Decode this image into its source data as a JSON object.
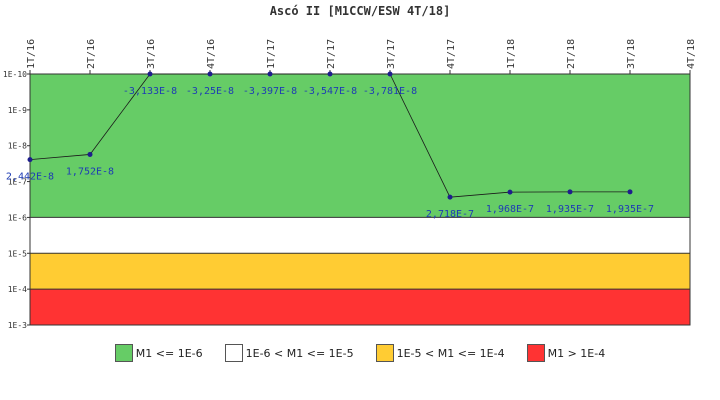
{
  "chart_data": {
    "type": "line",
    "title": "Ascó II [M1CCW/ESW 4T/18]",
    "x_categories": [
      "1T/16",
      "2T/16",
      "3T/16",
      "4T/16",
      "1T/17",
      "2T/17",
      "3T/17",
      "4T/17",
      "1T/18",
      "2T/18",
      "3T/18",
      "4T/18"
    ],
    "y_tick_labels": [
      "1E-10",
      "1E-9",
      "1E-8",
      "1E-7",
      "1E-6",
      "1E-5",
      "1E-4",
      "1E-3"
    ],
    "y_scale": "log",
    "y_axis_inverted": true,
    "ylim": [
      1e-10,
      0.001
    ],
    "series": [
      {
        "values": [
          2.442e-08,
          1.752e-08,
          -3.133e-08,
          -3.25e-08,
          -3.397e-08,
          -3.547e-08,
          -3.781e-08,
          2.718e-07,
          1.968e-07,
          1.935e-07,
          1.935e-07,
          null
        ],
        "data_labels": [
          "2,442E-8",
          "1,752E-8",
          "-3,133E-8",
          "-3,25E-8",
          "-3,397E-8",
          "-3,547E-8",
          "-3,781E-8",
          "2,718E-7",
          "1,968E-7",
          "1,935E-7",
          "1,935E-7",
          ""
        ],
        "color": "#1a1a1a",
        "marker_color": "#1e1e8c"
      }
    ],
    "bands": [
      {
        "from": 1e-10,
        "to": 1e-06,
        "color": "#66cc66",
        "label": "M1 <= 1E-6"
      },
      {
        "from": 1e-06,
        "to": 1e-05,
        "color": "#ffffff",
        "label": "1E-6 < M1 <= 1E-5"
      },
      {
        "from": 1e-05,
        "to": 0.0001,
        "color": "#ffcc33",
        "label": "1E-5 < M1 <= 1E-4"
      },
      {
        "from": 0.0001,
        "to": 0.001,
        "color": "#ff3333",
        "label": "M1 > 1E-4"
      }
    ],
    "legend_position": "bottom"
  }
}
